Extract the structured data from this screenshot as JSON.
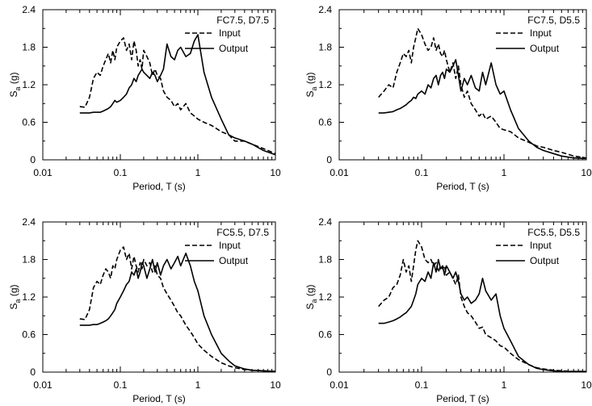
{
  "chart_data": [
    {
      "type": "line",
      "title": "FC7.5, D7.5",
      "xlabel": "Period, T (s)",
      "ylabel_main": "S",
      "ylabel_sub": "a",
      "ylabel_unit": " (g)",
      "xscale": "log",
      "xlim": [
        0.01,
        10
      ],
      "ylim": [
        0,
        2.4
      ],
      "xticks": [
        "0.01",
        "0.1",
        "1",
        "10"
      ],
      "yticks": [
        "0",
        "0.6",
        "1.2",
        "1.8",
        "2.4"
      ],
      "legend_position": "top-right",
      "series": [
        {
          "name": "Input",
          "style": "dashed",
          "x": [
            0.03,
            0.035,
            0.04,
            0.045,
            0.05,
            0.055,
            0.06,
            0.065,
            0.07,
            0.075,
            0.08,
            0.085,
            0.09,
            0.1,
            0.11,
            0.12,
            0.13,
            0.14,
            0.15,
            0.16,
            0.17,
            0.18,
            0.19,
            0.2,
            0.22,
            0.24,
            0.26,
            0.28,
            0.3,
            0.33,
            0.36,
            0.4,
            0.45,
            0.5,
            0.55,
            0.6,
            0.7,
            0.8,
            0.9,
            1.0,
            1.2,
            1.5,
            2.0,
            2.5,
            3.0,
            4.0,
            5.0,
            7.0,
            10.0
          ],
          "y": [
            0.85,
            0.84,
            1.0,
            1.3,
            1.4,
            1.35,
            1.5,
            1.6,
            1.7,
            1.55,
            1.75,
            1.6,
            1.8,
            1.9,
            1.95,
            1.75,
            1.85,
            1.6,
            1.9,
            1.75,
            1.5,
            1.6,
            1.45,
            1.75,
            1.65,
            1.55,
            1.35,
            1.45,
            1.35,
            1.3,
            1.1,
            1.0,
            0.95,
            0.85,
            0.9,
            0.8,
            0.9,
            0.75,
            0.7,
            0.65,
            0.6,
            0.55,
            0.45,
            0.4,
            0.3,
            0.3,
            0.25,
            0.18,
            0.1
          ]
        },
        {
          "name": "Output",
          "style": "solid",
          "x": [
            0.03,
            0.035,
            0.04,
            0.045,
            0.05,
            0.055,
            0.06,
            0.065,
            0.07,
            0.075,
            0.08,
            0.085,
            0.09,
            0.1,
            0.11,
            0.12,
            0.13,
            0.14,
            0.15,
            0.16,
            0.17,
            0.18,
            0.19,
            0.2,
            0.22,
            0.24,
            0.26,
            0.28,
            0.3,
            0.33,
            0.36,
            0.4,
            0.45,
            0.5,
            0.55,
            0.6,
            0.7,
            0.8,
            0.9,
            1.0,
            1.2,
            1.5,
            2.0,
            2.5,
            3.0,
            4.0,
            5.0,
            7.0,
            10.0
          ],
          "y": [
            0.75,
            0.75,
            0.75,
            0.76,
            0.76,
            0.76,
            0.78,
            0.8,
            0.82,
            0.85,
            0.9,
            0.95,
            0.92,
            0.95,
            1.0,
            1.05,
            1.15,
            1.2,
            1.3,
            1.25,
            1.35,
            1.4,
            1.45,
            1.4,
            1.35,
            1.3,
            1.4,
            1.35,
            1.25,
            1.35,
            1.45,
            1.85,
            1.65,
            1.6,
            1.75,
            1.8,
            1.65,
            1.7,
            1.9,
            2.0,
            1.4,
            1.0,
            0.65,
            0.4,
            0.35,
            0.3,
            0.25,
            0.15,
            0.08
          ]
        }
      ]
    },
    {
      "type": "line",
      "title": "FC7.5, D5.5",
      "xlabel": "Period, T (s)",
      "ylabel_main": "S",
      "ylabel_sub": "a",
      "ylabel_unit": " (g)",
      "xscale": "log",
      "xlim": [
        0.01,
        10
      ],
      "ylim": [
        0,
        2.4
      ],
      "xticks": [
        "0.01",
        "0.1",
        "1",
        "10"
      ],
      "yticks": [
        "0",
        "0.6",
        "1.2",
        "1.8",
        "2.4"
      ],
      "legend_position": "top-right",
      "series": [
        {
          "name": "Input",
          "style": "dashed",
          "x": [
            0.03,
            0.035,
            0.04,
            0.045,
            0.05,
            0.055,
            0.06,
            0.065,
            0.07,
            0.075,
            0.08,
            0.085,
            0.09,
            0.1,
            0.11,
            0.12,
            0.13,
            0.14,
            0.15,
            0.16,
            0.17,
            0.18,
            0.19,
            0.2,
            0.22,
            0.24,
            0.26,
            0.28,
            0.3,
            0.33,
            0.36,
            0.4,
            0.45,
            0.5,
            0.55,
            0.6,
            0.7,
            0.8,
            0.9,
            1.0,
            1.2,
            1.5,
            2.0,
            2.5,
            3.0,
            4.0,
            5.0,
            7.0,
            10.0
          ],
          "y": [
            1.0,
            1.1,
            1.2,
            1.15,
            1.4,
            1.55,
            1.7,
            1.65,
            1.75,
            1.55,
            1.8,
            1.95,
            2.1,
            2.0,
            1.85,
            1.75,
            1.8,
            1.95,
            1.75,
            1.85,
            1.7,
            1.65,
            1.75,
            1.6,
            1.4,
            1.55,
            1.3,
            1.5,
            1.2,
            1.0,
            1.1,
            0.9,
            0.8,
            0.7,
            0.75,
            0.65,
            0.7,
            0.6,
            0.5,
            0.48,
            0.45,
            0.35,
            0.28,
            0.22,
            0.2,
            0.15,
            0.12,
            0.06,
            0.03
          ]
        },
        {
          "name": "Output",
          "style": "solid",
          "x": [
            0.03,
            0.035,
            0.04,
            0.045,
            0.05,
            0.055,
            0.06,
            0.065,
            0.07,
            0.075,
            0.08,
            0.085,
            0.09,
            0.1,
            0.11,
            0.12,
            0.13,
            0.14,
            0.15,
            0.16,
            0.17,
            0.18,
            0.19,
            0.2,
            0.22,
            0.24,
            0.26,
            0.28,
            0.3,
            0.33,
            0.36,
            0.4,
            0.45,
            0.5,
            0.55,
            0.6,
            0.7,
            0.8,
            0.9,
            1.0,
            1.2,
            1.5,
            2.0,
            2.5,
            3.0,
            4.0,
            5.0,
            7.0,
            10.0
          ],
          "y": [
            0.75,
            0.75,
            0.76,
            0.77,
            0.8,
            0.82,
            0.85,
            0.88,
            0.92,
            0.95,
            1.0,
            0.98,
            1.05,
            1.1,
            1.05,
            1.2,
            1.15,
            1.3,
            1.35,
            1.2,
            1.35,
            1.4,
            1.3,
            1.45,
            1.4,
            1.5,
            1.6,
            1.35,
            1.1,
            1.3,
            1.2,
            1.35,
            1.15,
            1.1,
            1.4,
            1.2,
            1.55,
            1.2,
            1.05,
            1.1,
            0.8,
            0.5,
            0.3,
            0.2,
            0.15,
            0.1,
            0.06,
            0.03,
            0.02
          ]
        }
      ]
    },
    {
      "type": "line",
      "title": "FC5.5, D7.5",
      "xlabel": "Period, T (s)",
      "ylabel_main": "S",
      "ylabel_sub": "a",
      "ylabel_unit": " (g)",
      "xscale": "log",
      "xlim": [
        0.01,
        10
      ],
      "ylim": [
        0,
        2.4
      ],
      "xticks": [
        "0.01",
        "0.1",
        "1",
        "10"
      ],
      "yticks": [
        "0",
        "0.6",
        "1.2",
        "1.8",
        "2.4"
      ],
      "legend_position": "top-right",
      "series": [
        {
          "name": "Input",
          "style": "dashed",
          "x": [
            0.03,
            0.035,
            0.04,
            0.045,
            0.05,
            0.055,
            0.06,
            0.065,
            0.07,
            0.075,
            0.08,
            0.085,
            0.09,
            0.1,
            0.11,
            0.12,
            0.13,
            0.14,
            0.15,
            0.16,
            0.17,
            0.18,
            0.19,
            0.2,
            0.22,
            0.24,
            0.26,
            0.28,
            0.3,
            0.33,
            0.36,
            0.4,
            0.45,
            0.5,
            0.55,
            0.6,
            0.7,
            0.8,
            0.9,
            1.0,
            1.2,
            1.5,
            2.0,
            2.5,
            3.0,
            4.0,
            5.0,
            7.0,
            10.0
          ],
          "y": [
            0.85,
            0.84,
            1.0,
            1.35,
            1.45,
            1.4,
            1.55,
            1.65,
            1.6,
            1.5,
            1.7,
            1.65,
            1.8,
            1.95,
            2.0,
            1.8,
            1.9,
            1.65,
            1.85,
            1.7,
            1.6,
            1.75,
            1.65,
            1.8,
            1.7,
            1.75,
            1.6,
            1.7,
            1.55,
            1.5,
            1.35,
            1.25,
            1.15,
            1.05,
            0.95,
            0.9,
            0.75,
            0.65,
            0.55,
            0.45,
            0.35,
            0.25,
            0.15,
            0.1,
            0.07,
            0.04,
            0.03,
            0.02,
            0.01
          ]
        },
        {
          "name": "Output",
          "style": "solid",
          "x": [
            0.03,
            0.035,
            0.04,
            0.045,
            0.05,
            0.055,
            0.06,
            0.065,
            0.07,
            0.075,
            0.08,
            0.085,
            0.09,
            0.1,
            0.11,
            0.12,
            0.13,
            0.14,
            0.15,
            0.16,
            0.17,
            0.18,
            0.19,
            0.2,
            0.22,
            0.24,
            0.26,
            0.28,
            0.3,
            0.33,
            0.36,
            0.4,
            0.45,
            0.5,
            0.55,
            0.6,
            0.7,
            0.8,
            0.9,
            1.0,
            1.2,
            1.5,
            2.0,
            2.5,
            3.0,
            4.0,
            5.0,
            7.0,
            10.0
          ],
          "y": [
            0.75,
            0.75,
            0.75,
            0.76,
            0.76,
            0.78,
            0.8,
            0.82,
            0.85,
            0.9,
            0.95,
            1.0,
            1.1,
            1.2,
            1.3,
            1.4,
            1.45,
            1.6,
            1.55,
            1.65,
            1.5,
            1.6,
            1.75,
            1.7,
            1.5,
            1.65,
            1.8,
            1.6,
            1.75,
            1.55,
            1.7,
            1.8,
            1.65,
            1.75,
            1.85,
            1.7,
            1.9,
            1.7,
            1.45,
            1.3,
            0.9,
            0.6,
            0.3,
            0.18,
            0.1,
            0.05,
            0.03,
            0.02,
            0.01
          ]
        }
      ]
    },
    {
      "type": "line",
      "title": "FC5.5, D5.5",
      "xlabel": "Period, T (s)",
      "ylabel_main": "S",
      "ylabel_sub": "a",
      "ylabel_unit": " (g)",
      "xscale": "log",
      "xlim": [
        0.01,
        10
      ],
      "ylim": [
        0,
        2.4
      ],
      "xticks": [
        "0.01",
        "0.1",
        "1",
        "10"
      ],
      "yticks": [
        "0",
        "0.6",
        "1.2",
        "1.8",
        "2.4"
      ],
      "legend_position": "top-right",
      "series": [
        {
          "name": "Input",
          "style": "dashed",
          "x": [
            0.03,
            0.035,
            0.04,
            0.045,
            0.05,
            0.055,
            0.06,
            0.065,
            0.07,
            0.075,
            0.08,
            0.085,
            0.09,
            0.1,
            0.11,
            0.12,
            0.13,
            0.14,
            0.15,
            0.16,
            0.17,
            0.18,
            0.19,
            0.2,
            0.22,
            0.24,
            0.26,
            0.28,
            0.3,
            0.33,
            0.36,
            0.4,
            0.45,
            0.5,
            0.55,
            0.6,
            0.7,
            0.8,
            0.9,
            1.0,
            1.2,
            1.5,
            2.0,
            2.5,
            3.0,
            4.0,
            5.0,
            7.0,
            10.0
          ],
          "y": [
            1.05,
            1.15,
            1.2,
            1.35,
            1.4,
            1.55,
            1.8,
            1.6,
            1.7,
            1.45,
            1.7,
            1.95,
            2.1,
            2.0,
            1.8,
            1.75,
            1.8,
            1.7,
            1.75,
            1.6,
            1.7,
            1.65,
            1.7,
            1.55,
            1.6,
            1.5,
            1.4,
            1.55,
            1.2,
            1.05,
            0.95,
            0.9,
            0.8,
            0.7,
            0.72,
            0.6,
            0.55,
            0.5,
            0.42,
            0.4,
            0.3,
            0.2,
            0.12,
            0.07,
            0.05,
            0.03,
            0.02,
            0.01,
            0.01
          ]
        },
        {
          "name": "Output",
          "style": "solid",
          "x": [
            0.03,
            0.035,
            0.04,
            0.045,
            0.05,
            0.055,
            0.06,
            0.065,
            0.07,
            0.075,
            0.08,
            0.085,
            0.09,
            0.1,
            0.11,
            0.12,
            0.13,
            0.14,
            0.15,
            0.16,
            0.17,
            0.18,
            0.19,
            0.2,
            0.22,
            0.24,
            0.26,
            0.28,
            0.3,
            0.33,
            0.36,
            0.4,
            0.45,
            0.5,
            0.55,
            0.6,
            0.7,
            0.8,
            0.9,
            1.0,
            1.2,
            1.5,
            2.0,
            2.5,
            3.0,
            4.0,
            5.0,
            7.0,
            10.0
          ],
          "y": [
            0.78,
            0.78,
            0.8,
            0.82,
            0.85,
            0.88,
            0.92,
            0.95,
            1.0,
            1.05,
            1.15,
            1.25,
            1.4,
            1.5,
            1.45,
            1.6,
            1.5,
            1.75,
            1.6,
            1.8,
            1.65,
            1.7,
            1.55,
            1.7,
            1.6,
            1.5,
            1.6,
            1.45,
            1.25,
            1.15,
            1.2,
            1.1,
            1.15,
            1.25,
            1.5,
            1.3,
            1.15,
            1.25,
            0.9,
            0.7,
            0.5,
            0.25,
            0.12,
            0.06,
            0.04,
            0.02,
            0.01,
            0.01,
            0.01
          ]
        }
      ]
    }
  ]
}
